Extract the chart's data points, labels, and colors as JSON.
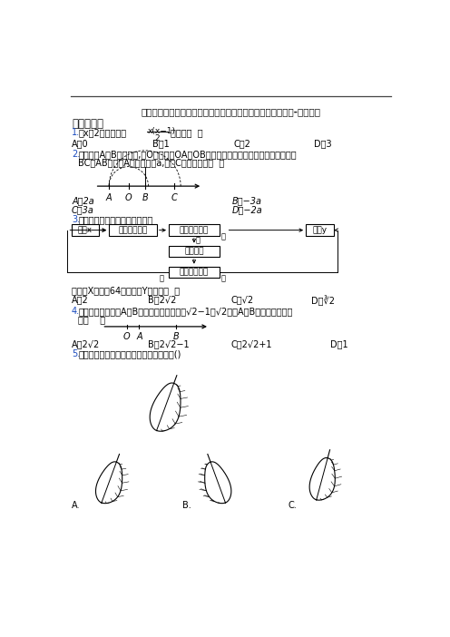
{
  "title": "深圳大浪博恒中英学校人教版七年级上册数学期末试卷及答案-百度文库",
  "section1": "一、选择题",
  "bg_color": "#ffffff",
  "blue_color": "#1a4bbf",
  "q1_opts": [
    "A．0",
    "B．1",
    "C．2",
    "D．3"
  ],
  "q2_opts_left": [
    "A．2a",
    "C．3a"
  ],
  "q2_opts_right": [
    "B．−3a",
    "D．−2a"
  ],
  "q3_opts": [
    "A．2",
    "B．2√2",
    "C．√2",
    "D．∛2"
  ],
  "q4_opts": [
    "A．2√2",
    "B．2√2−1",
    "C．2√2+1",
    "D．1"
  ]
}
